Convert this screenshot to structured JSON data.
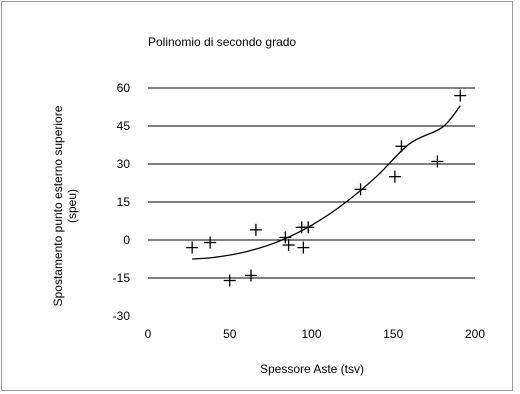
{
  "chart_data": {
    "type": "scatter",
    "title": "Polinomio di secondo grado",
    "xlabel": "Spessore Aste (tsv)",
    "ylabel_lines": [
      "Spostamento punto esterno superiore",
      "(speu)"
    ],
    "xlim": [
      0,
      200
    ],
    "ylim": [
      -30,
      60
    ],
    "x_ticks": [
      0,
      50,
      100,
      150,
      200
    ],
    "y_ticks": [
      -30,
      -15,
      0,
      15,
      30,
      45,
      60
    ],
    "grid": "horizontal",
    "legend": "none",
    "series": [
      {
        "marker": "plus",
        "points": [
          [
            27,
            -3
          ],
          [
            38,
            -1
          ],
          [
            50,
            -16
          ],
          [
            63,
            -14
          ],
          [
            66,
            4
          ],
          [
            84,
            1
          ],
          [
            86,
            -2
          ],
          [
            94,
            5
          ],
          [
            95,
            -3
          ],
          [
            98,
            5
          ],
          [
            130,
            20
          ],
          [
            151,
            25
          ],
          [
            155,
            37
          ],
          [
            177,
            31
          ],
          [
            191,
            57
          ]
        ]
      }
    ],
    "trendline": {
      "type": "polynomial-order-2",
      "x_range": [
        27,
        191
      ],
      "curve": [
        [
          27,
          -7.5
        ],
        [
          40,
          -6.9
        ],
        [
          60,
          -4.6
        ],
        [
          80,
          -0.5
        ],
        [
          100,
          5.8
        ],
        [
          120,
          14.4
        ],
        [
          140,
          25.2
        ],
        [
          160,
          38.0
        ],
        [
          180,
          44.5
        ],
        [
          191,
          53
        ]
      ]
    },
    "colors": {
      "marker": "#000000",
      "grid": "#000000",
      "curve": "#000000",
      "frame": "#9a9a9a"
    }
  }
}
